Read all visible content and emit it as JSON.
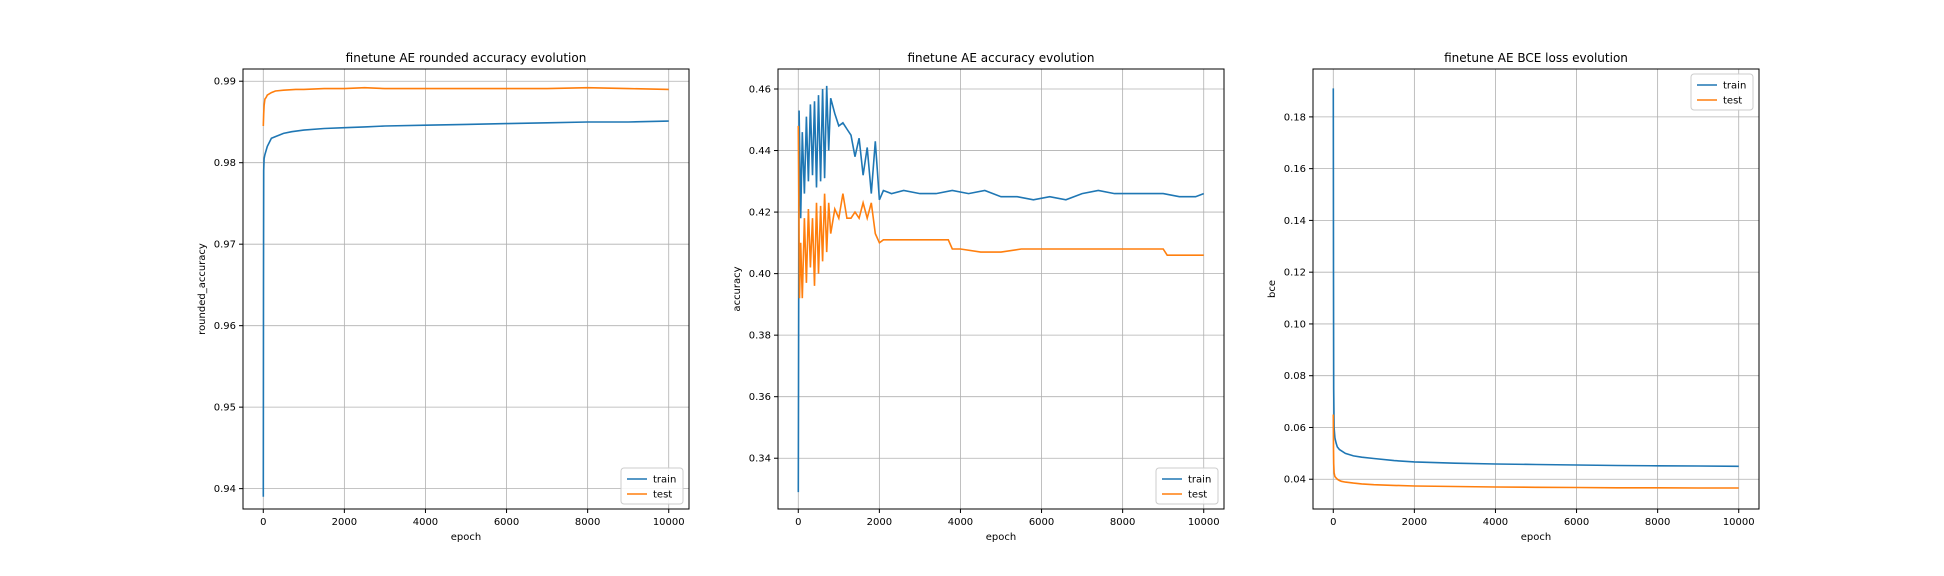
{
  "colors": {
    "train": "#1f77b4",
    "test": "#ff7f0e",
    "grid": "#b0b0b0",
    "frame": "#000000"
  },
  "chart_data": [
    {
      "type": "line",
      "title": "finetune AE rounded accuracy evolution",
      "xlabel": "epoch",
      "ylabel": "rounded_accuracy",
      "xlim": [
        -500,
        10500
      ],
      "ylim": [
        0.9375,
        0.9915
      ],
      "xticks": [
        0,
        2000,
        4000,
        6000,
        8000,
        10000
      ],
      "xtick_labels": [
        "0",
        "2000",
        "4000",
        "6000",
        "8000",
        "10000"
      ],
      "yticks": [
        0.94,
        0.95,
        0.96,
        0.97,
        0.98,
        0.99
      ],
      "ytick_labels": [
        "0.94",
        "0.95",
        "0.96",
        "0.97",
        "0.98",
        "0.99"
      ],
      "grid": true,
      "legend": "lower right",
      "series": [
        {
          "name": "train",
          "x": [
            0,
            5,
            10,
            20,
            40,
            70,
            100,
            150,
            200,
            300,
            400,
            500,
            700,
            1000,
            1500,
            2000,
            2500,
            3000,
            4000,
            5000,
            6000,
            7000,
            8000,
            9000,
            10000
          ],
          "y": [
            0.939,
            0.965,
            0.979,
            0.9805,
            0.981,
            0.9815,
            0.982,
            0.9825,
            0.983,
            0.9832,
            0.9834,
            0.9836,
            0.9838,
            0.984,
            0.9842,
            0.9843,
            0.9844,
            0.9845,
            0.9846,
            0.9847,
            0.9848,
            0.9849,
            0.985,
            0.985,
            0.9851
          ]
        },
        {
          "name": "test",
          "x": [
            0,
            10,
            20,
            40,
            70,
            100,
            200,
            300,
            500,
            800,
            1000,
            1500,
            2000,
            2500,
            3000,
            4000,
            5000,
            6000,
            7000,
            8000,
            9000,
            10000
          ],
          "y": [
            0.9845,
            0.986,
            0.987,
            0.9878,
            0.988,
            0.9883,
            0.9886,
            0.9888,
            0.9889,
            0.989,
            0.989,
            0.9891,
            0.9891,
            0.9892,
            0.9891,
            0.9891,
            0.9891,
            0.9891,
            0.9891,
            0.9892,
            0.9891,
            0.989
          ]
        }
      ]
    },
    {
      "type": "line",
      "title": "finetune AE accuracy evolution",
      "xlabel": "epoch",
      "ylabel": "accuracy",
      "xlim": [
        -500,
        10500
      ],
      "ylim": [
        0.3235,
        0.4665
      ],
      "xticks": [
        0,
        2000,
        4000,
        6000,
        8000,
        10000
      ],
      "xtick_labels": [
        "0",
        "2000",
        "4000",
        "6000",
        "8000",
        "10000"
      ],
      "yticks": [
        0.34,
        0.36,
        0.38,
        0.4,
        0.42,
        0.44,
        0.46
      ],
      "ytick_labels": [
        "0.34",
        "0.36",
        "0.38",
        "0.40",
        "0.42",
        "0.44",
        "0.46"
      ],
      "grid": true,
      "legend": "lower right",
      "series": [
        {
          "name": "train",
          "x": [
            0,
            20,
            60,
            100,
            150,
            200,
            250,
            300,
            350,
            400,
            450,
            500,
            550,
            600,
            650,
            700,
            750,
            800,
            900,
            1000,
            1100,
            1200,
            1300,
            1400,
            1500,
            1600,
            1700,
            1800,
            1900,
            2000,
            2100,
            2300,
            2600,
            3000,
            3400,
            3800,
            4200,
            4600,
            5000,
            5400,
            5800,
            6200,
            6600,
            7000,
            7400,
            7800,
            8200,
            8600,
            9000,
            9400,
            9800,
            10000
          ],
          "y": [
            0.329,
            0.453,
            0.418,
            0.446,
            0.426,
            0.451,
            0.43,
            0.455,
            0.432,
            0.456,
            0.428,
            0.458,
            0.43,
            0.46,
            0.431,
            0.461,
            0.44,
            0.457,
            0.452,
            0.448,
            0.449,
            0.447,
            0.445,
            0.438,
            0.444,
            0.432,
            0.441,
            0.426,
            0.443,
            0.424,
            0.427,
            0.426,
            0.427,
            0.426,
            0.426,
            0.427,
            0.426,
            0.427,
            0.425,
            0.425,
            0.424,
            0.425,
            0.424,
            0.426,
            0.427,
            0.426,
            0.426,
            0.426,
            0.426,
            0.425,
            0.425,
            0.426
          ]
        },
        {
          "name": "test",
          "x": [
            0,
            30,
            60,
            100,
            150,
            200,
            250,
            300,
            350,
            400,
            450,
            500,
            550,
            600,
            650,
            700,
            750,
            800,
            900,
            1000,
            1100,
            1200,
            1300,
            1400,
            1500,
            1600,
            1700,
            1800,
            1900,
            2000,
            2100,
            2500,
            3000,
            3500,
            3700,
            3800,
            4000,
            4500,
            5000,
            5500,
            6000,
            6500,
            7000,
            7500,
            8000,
            8500,
            9000,
            9100,
            9200,
            9500,
            10000
          ],
          "y": [
            0.448,
            0.392,
            0.41,
            0.392,
            0.418,
            0.397,
            0.421,
            0.402,
            0.418,
            0.396,
            0.423,
            0.4,
            0.422,
            0.404,
            0.426,
            0.407,
            0.423,
            0.413,
            0.421,
            0.418,
            0.426,
            0.418,
            0.418,
            0.42,
            0.418,
            0.423,
            0.418,
            0.423,
            0.413,
            0.41,
            0.411,
            0.411,
            0.411,
            0.411,
            0.411,
            0.408,
            0.408,
            0.407,
            0.407,
            0.408,
            0.408,
            0.408,
            0.408,
            0.408,
            0.408,
            0.408,
            0.408,
            0.406,
            0.406,
            0.406,
            0.406
          ]
        }
      ]
    },
    {
      "type": "line",
      "title": "finetune AE BCE loss evolution",
      "xlabel": "epoch",
      "ylabel": "bce",
      "xlim": [
        -500,
        10500
      ],
      "ylim": [
        0.0285,
        0.1985
      ],
      "xticks": [
        0,
        2000,
        4000,
        6000,
        8000,
        10000
      ],
      "xtick_labels": [
        "0",
        "2000",
        "4000",
        "6000",
        "8000",
        "10000"
      ],
      "yticks": [
        0.04,
        0.06,
        0.08,
        0.1,
        0.12,
        0.14,
        0.16,
        0.18
      ],
      "ytick_labels": [
        "0.04",
        "0.06",
        "0.08",
        "0.10",
        "0.12",
        "0.14",
        "0.16",
        "0.18"
      ],
      "grid": true,
      "legend": "upper right",
      "series": [
        {
          "name": "train",
          "x": [
            0,
            5,
            10,
            20,
            40,
            70,
            100,
            150,
            200,
            300,
            500,
            700,
            1000,
            1500,
            2000,
            3000,
            4000,
            5000,
            6000,
            7000,
            8000,
            9000,
            10000
          ],
          "y": [
            0.191,
            0.12,
            0.075,
            0.06,
            0.056,
            0.054,
            0.0525,
            0.0515,
            0.051,
            0.05,
            0.049,
            0.0485,
            0.048,
            0.0472,
            0.0467,
            0.0462,
            0.0459,
            0.0457,
            0.0455,
            0.0453,
            0.0452,
            0.0451,
            0.045
          ]
        },
        {
          "name": "test",
          "x": [
            0,
            5,
            10,
            20,
            40,
            70,
            100,
            150,
            200,
            300,
            500,
            700,
            1000,
            1500,
            2000,
            3000,
            4000,
            5000,
            6000,
            7000,
            8000,
            9000,
            10000
          ],
          "y": [
            0.065,
            0.052,
            0.046,
            0.0425,
            0.041,
            0.0405,
            0.04,
            0.0395,
            0.0392,
            0.0389,
            0.0385,
            0.0382,
            0.0379,
            0.0376,
            0.0374,
            0.0372,
            0.037,
            0.0369,
            0.0368,
            0.0367,
            0.0367,
            0.0366,
            0.0366
          ]
        }
      ]
    }
  ]
}
